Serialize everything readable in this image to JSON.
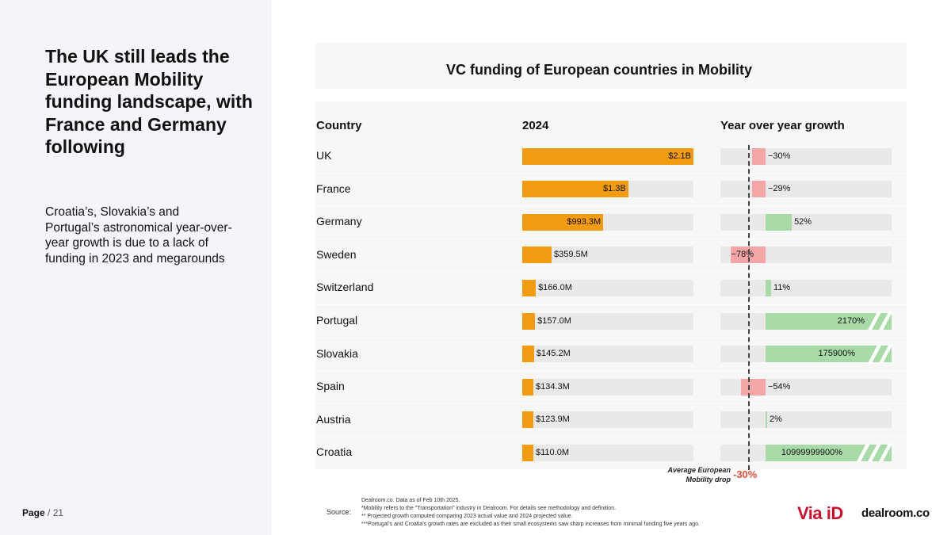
{
  "left_panel": {
    "headline": "The UK still leads the European Mobility funding landscape, with France and Germany following",
    "subtext": "Croatia’s, Slovakia’s and Portugal’s astronomical year-over-year growth is due to a lack of funding in 2023 and megarounds",
    "page_current": "Page",
    "page_total": " / 21"
  },
  "chart_data": {
    "type": "table",
    "title": "VC funding of European countries in Mobility",
    "columns": [
      "Country",
      "2024",
      "Year over year growth"
    ],
    "funding_unit": "USD",
    "countries": [
      "UK",
      "France",
      "Germany",
      "Sweden",
      "Switzerland",
      "Portugal",
      "Slovakia",
      "Spain",
      "Austria",
      "Croatia"
    ],
    "funding_values_musd": [
      2100,
      1300,
      993.3,
      359.5,
      166.0,
      157.0,
      145.2,
      134.3,
      123.9,
      110.0
    ],
    "funding_labels": [
      "$2.1B",
      "$1.3B",
      "$993.3M",
      "$359.5M",
      "$166.0M",
      "$157.0M",
      "$145.2M",
      "$134.3M",
      "$123.9M",
      "$110.0M"
    ],
    "growth_values_pct": [
      -30,
      -29,
      52,
      -78,
      11,
      2170,
      175900,
      -54,
      2,
      10999999900
    ],
    "growth_labels": [
      "−30%",
      "−29%",
      "52%",
      "−78%",
      "11%",
      "2170%",
      "175900%",
      "−54%",
      "2%",
      "10999999900%"
    ],
    "growth_axis_clip_pct": [
      -100,
      250
    ],
    "average": {
      "caption": "Average European Mobility drop",
      "value": -30,
      "label": "-30%"
    },
    "colors": {
      "funding": "#f39c12",
      "negative": "#f4a6a6",
      "positive": "#a8dba8",
      "average": "#e74c3c",
      "track": "#e9e9e9"
    }
  },
  "footer": {
    "source_label": "Source:",
    "source_lines": [
      "Dealroom.co. Data as of  Feb 10th 2025.",
      "*Mobility refers to the \"Transportation\" industry in Dealroom. For details see methodology and definition.",
      "** Projected growth computed comparing 2023 actual value and 2024 projected value.",
      "***Portugal’s and Croatia’s growth rates are excluded as their small ecosystems saw sharp increases from minimal funding five years ago."
    ],
    "logo_viaid": "Via iD",
    "logo_dealroom": "dealroom.co"
  }
}
